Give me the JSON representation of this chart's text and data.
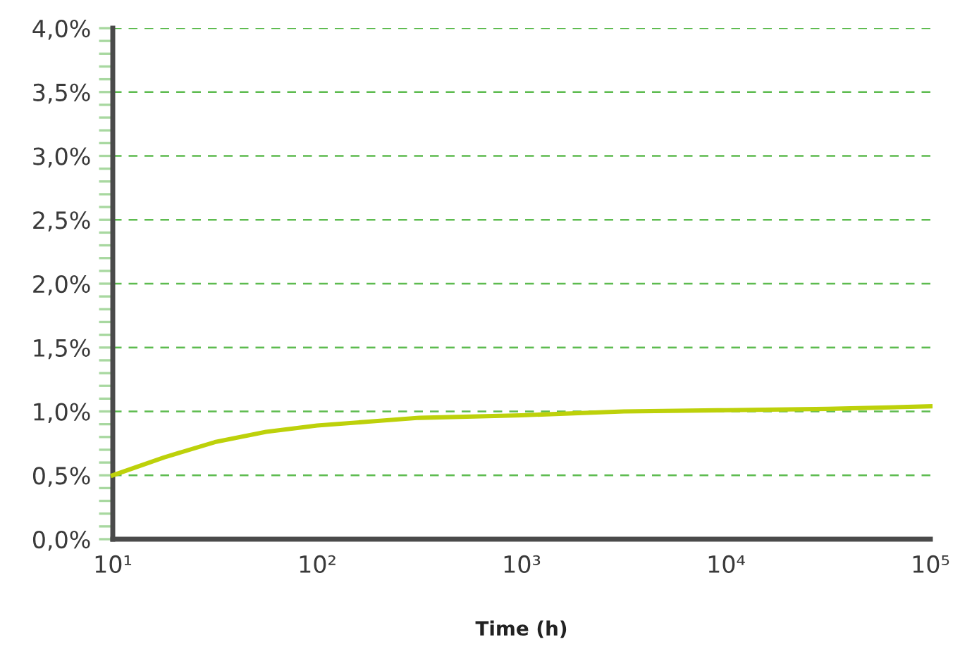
{
  "chart_data": {
    "type": "line",
    "xlabel": "Time (h)",
    "log": "x",
    "x": [
      10,
      17.8,
      31.6,
      56.2,
      100,
      178,
      316,
      1000,
      3162,
      10000,
      31623,
      100000
    ],
    "series": [
      {
        "color": "#bdd10a",
        "values": [
          0.5,
          0.64,
          0.76,
          0.84,
          0.89,
          0.92,
          0.95,
          0.97,
          1.0,
          1.01,
          1.02,
          1.04
        ]
      }
    ],
    "xlim": [
      10,
      100000
    ],
    "xticks": [
      {
        "value": 10,
        "label": "10¹"
      },
      {
        "value": 100,
        "label": "10²"
      },
      {
        "value": 1000,
        "label": "10³"
      },
      {
        "value": 10000,
        "label": "10⁴"
      },
      {
        "value": 100000,
        "label": "10⁵"
      }
    ],
    "ylim": [
      0,
      4
    ],
    "yticks": [
      {
        "value": 0,
        "label": "0,0%"
      },
      {
        "value": 0.1,
        "label": null
      },
      {
        "value": 0.2,
        "label": null
      },
      {
        "value": 0.3,
        "label": null
      },
      {
        "value": 0.4,
        "label": null
      },
      {
        "value": 0.5,
        "label": "0,5%"
      },
      {
        "value": 0.6,
        "label": null
      },
      {
        "value": 0.7,
        "label": null
      },
      {
        "value": 0.8,
        "label": null
      },
      {
        "value": 0.9,
        "label": null
      },
      {
        "value": 1.0,
        "label": "1,0%"
      },
      {
        "value": 1.1,
        "label": null
      },
      {
        "value": 1.2,
        "label": null
      },
      {
        "value": 1.3,
        "label": null
      },
      {
        "value": 1.4,
        "label": null
      },
      {
        "value": 1.5,
        "label": "1,5%"
      },
      {
        "value": 1.6,
        "label": null
      },
      {
        "value": 1.7,
        "label": null
      },
      {
        "value": 1.8,
        "label": null
      },
      {
        "value": 1.9,
        "label": null
      },
      {
        "value": 2.0,
        "label": "2,0%"
      },
      {
        "value": 2.1,
        "label": null
      },
      {
        "value": 2.2,
        "label": null
      },
      {
        "value": 2.3,
        "label": null
      },
      {
        "value": 2.4,
        "label": null
      },
      {
        "value": 2.5,
        "label": "2,5%"
      },
      {
        "value": 2.6,
        "label": null
      },
      {
        "value": 2.7,
        "label": null
      },
      {
        "value": 2.8,
        "label": null
      },
      {
        "value": 2.9,
        "label": null
      },
      {
        "value": 3.0,
        "label": "3,0%"
      },
      {
        "value": 3.1,
        "label": null
      },
      {
        "value": 3.2,
        "label": null
      },
      {
        "value": 3.3,
        "label": null
      },
      {
        "value": 3.4,
        "label": null
      },
      {
        "value": 3.5,
        "label": "3,5%"
      },
      {
        "value": 3.6,
        "label": null
      },
      {
        "value": 3.7,
        "label": null
      },
      {
        "value": 3.8,
        "label": null
      },
      {
        "value": 3.9,
        "label": null
      },
      {
        "value": 4.0,
        "label": "4,0%"
      }
    ],
    "grid": "y",
    "line_style": "solid",
    "marker": "none"
  }
}
